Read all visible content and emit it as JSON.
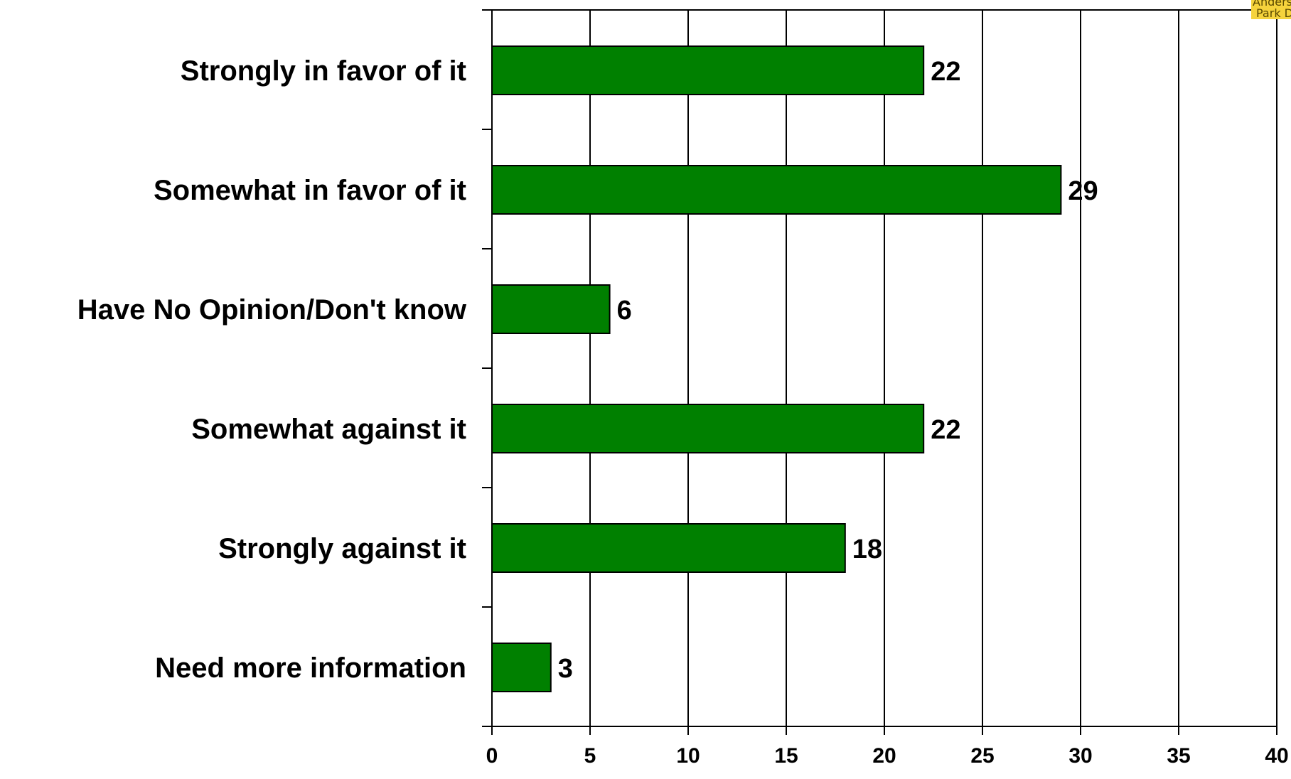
{
  "chart_data": {
    "type": "bar",
    "orientation": "horizontal",
    "categories": [
      "Strongly in favor of it",
      "Somewhat in favor of it",
      "Have No Opinion/Don't know",
      "Somewhat against it",
      "Strongly against it",
      "Need more information"
    ],
    "values": [
      22,
      29,
      6,
      22,
      18,
      3
    ],
    "value_labels": [
      "22",
      "29",
      "6",
      "22",
      "18",
      "3"
    ],
    "xlim": [
      0,
      40
    ],
    "x_ticks": [
      0,
      5,
      10,
      15,
      20,
      25,
      30,
      35,
      40
    ],
    "x_tick_labels": [
      "0",
      "5",
      "10",
      "15",
      "20",
      "25",
      "30",
      "35",
      "40"
    ],
    "grid": "vertical",
    "legend": "none",
    "colors": {
      "bar": "#008000",
      "bar_stroke": "#000000",
      "grid": "#000000",
      "text": "#000000"
    }
  },
  "logo": {
    "line1": "Anderson",
    "line2": "Park D",
    "background": "#f5d33c"
  }
}
